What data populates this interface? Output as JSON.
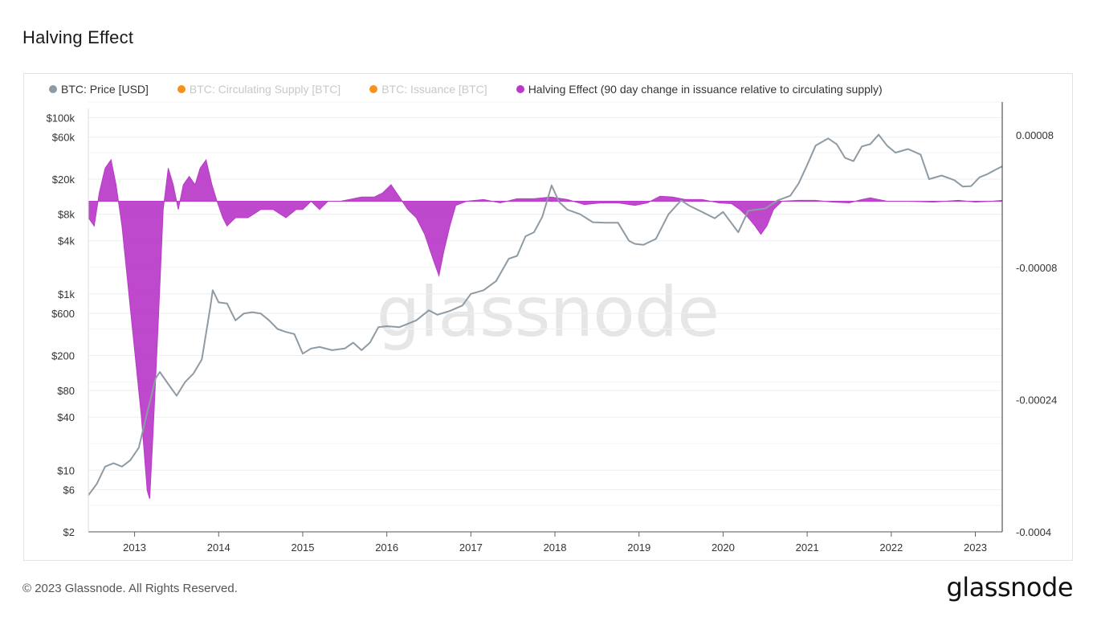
{
  "header": {
    "title": "Halving Effect"
  },
  "legend": [
    {
      "label": "BTC: Price [USD]",
      "color": "#8e9ba4",
      "active": true
    },
    {
      "label": "BTC: Circulating Supply [BTC]",
      "color": "#f7931a",
      "active": false
    },
    {
      "label": "BTC: Issuance [BTC]",
      "color": "#f7931a",
      "active": false
    },
    {
      "label": "Halving Effect (90 day change in issuance relative to circulating supply)",
      "color": "#b93ac8",
      "active": true
    }
  ],
  "watermark": "glassnode",
  "footer": {
    "copyright": "© 2023 Glassnode. All Rights Reserved.",
    "logo": "glassnode"
  },
  "chart_data": {
    "type": "line",
    "x_ticks": [
      "2013",
      "2014",
      "2015",
      "2016",
      "2017",
      "2018",
      "2019",
      "2020",
      "2021",
      "2022",
      "2023"
    ],
    "x_range": [
      2012.45,
      2023.32
    ],
    "y_left": {
      "scale": "log",
      "range": [
        2,
        150000
      ],
      "ticks": [
        {
          "v": 100000,
          "label": "$100k"
        },
        {
          "v": 60000,
          "label": "$60k"
        },
        {
          "v": 20000,
          "label": "$20k"
        },
        {
          "v": 8000,
          "label": "$8k"
        },
        {
          "v": 4000,
          "label": "$4k"
        },
        {
          "v": 1000,
          "label": "$1k"
        },
        {
          "v": 600,
          "label": "$600"
        },
        {
          "v": 200,
          "label": "$200"
        },
        {
          "v": 80,
          "label": "$80"
        },
        {
          "v": 40,
          "label": "$40"
        },
        {
          "v": 10,
          "label": "$10"
        },
        {
          "v": 6,
          "label": "$6"
        },
        {
          "v": 2,
          "label": "$2"
        }
      ]
    },
    "y_right": {
      "scale": "linear",
      "range": [
        -0.0004,
        0.00012
      ],
      "ticks": [
        {
          "v": 8e-05,
          "label": "0.00008"
        },
        {
          "v": -8e-05,
          "label": "-0.00008"
        },
        {
          "v": -0.00024,
          "label": "-0.00024"
        },
        {
          "v": -0.0004,
          "label": "-0.0004"
        }
      ]
    },
    "series": [
      {
        "name": "BTC: Price [USD]",
        "axis": "left",
        "color": "#8e9ba4",
        "points": [
          [
            2012.45,
            5.2
          ],
          [
            2012.55,
            7
          ],
          [
            2012.65,
            11
          ],
          [
            2012.75,
            12
          ],
          [
            2012.85,
            11
          ],
          [
            2012.95,
            13
          ],
          [
            2013.05,
            18
          ],
          [
            2013.15,
            45
          ],
          [
            2013.25,
            110
          ],
          [
            2013.3,
            130
          ],
          [
            2013.4,
            95
          ],
          [
            2013.5,
            70
          ],
          [
            2013.6,
            100
          ],
          [
            2013.7,
            125
          ],
          [
            2013.8,
            180
          ],
          [
            2013.9,
            700
          ],
          [
            2013.93,
            1100
          ],
          [
            2014.0,
            800
          ],
          [
            2014.1,
            780
          ],
          [
            2014.2,
            500
          ],
          [
            2014.3,
            600
          ],
          [
            2014.4,
            620
          ],
          [
            2014.5,
            600
          ],
          [
            2014.6,
            500
          ],
          [
            2014.7,
            400
          ],
          [
            2014.8,
            370
          ],
          [
            2014.9,
            350
          ],
          [
            2015.0,
            210
          ],
          [
            2015.1,
            240
          ],
          [
            2015.2,
            250
          ],
          [
            2015.35,
            230
          ],
          [
            2015.5,
            240
          ],
          [
            2015.6,
            280
          ],
          [
            2015.7,
            230
          ],
          [
            2015.8,
            280
          ],
          [
            2015.9,
            420
          ],
          [
            2016.0,
            430
          ],
          [
            2016.15,
            420
          ],
          [
            2016.35,
            500
          ],
          [
            2016.5,
            650
          ],
          [
            2016.6,
            580
          ],
          [
            2016.75,
            640
          ],
          [
            2016.9,
            740
          ],
          [
            2017.0,
            1000
          ],
          [
            2017.15,
            1100
          ],
          [
            2017.3,
            1400
          ],
          [
            2017.45,
            2500
          ],
          [
            2017.55,
            2700
          ],
          [
            2017.65,
            4500
          ],
          [
            2017.75,
            5000
          ],
          [
            2017.85,
            7500
          ],
          [
            2017.96,
            17000
          ],
          [
            2018.05,
            11000
          ],
          [
            2018.15,
            9000
          ],
          [
            2018.3,
            8000
          ],
          [
            2018.45,
            6500
          ],
          [
            2018.6,
            6400
          ],
          [
            2018.75,
            6400
          ],
          [
            2018.88,
            4000
          ],
          [
            2018.95,
            3700
          ],
          [
            2019.05,
            3600
          ],
          [
            2019.2,
            4200
          ],
          [
            2019.35,
            8000
          ],
          [
            2019.5,
            11500
          ],
          [
            2019.6,
            10000
          ],
          [
            2019.75,
            8500
          ],
          [
            2019.9,
            7200
          ],
          [
            2020.0,
            8500
          ],
          [
            2020.18,
            5000
          ],
          [
            2020.3,
            8800
          ],
          [
            2020.5,
            9300
          ],
          [
            2020.65,
            11500
          ],
          [
            2020.8,
            13000
          ],
          [
            2020.9,
            18000
          ],
          [
            2021.0,
            29000
          ],
          [
            2021.1,
            48000
          ],
          [
            2021.25,
            58000
          ],
          [
            2021.35,
            50000
          ],
          [
            2021.45,
            35000
          ],
          [
            2021.55,
            32000
          ],
          [
            2021.65,
            47000
          ],
          [
            2021.75,
            50000
          ],
          [
            2021.85,
            64000
          ],
          [
            2021.95,
            48000
          ],
          [
            2022.05,
            40000
          ],
          [
            2022.2,
            44000
          ],
          [
            2022.35,
            38000
          ],
          [
            2022.45,
            20000
          ],
          [
            2022.6,
            22000
          ],
          [
            2022.75,
            19500
          ],
          [
            2022.85,
            16500
          ],
          [
            2022.95,
            16700
          ],
          [
            2023.05,
            21000
          ],
          [
            2023.15,
            23000
          ],
          [
            2023.22,
            25000
          ],
          [
            2023.32,
            28000
          ]
        ]
      },
      {
        "name": "Halving Effect (90 day change in issuance relative to circulating supply)",
        "axis": "right",
        "color": "#b93ac8",
        "points": [
          [
            2012.45,
            -2e-05
          ],
          [
            2012.52,
            -3e-05
          ],
          [
            2012.58,
            1e-05
          ],
          [
            2012.65,
            4e-05
          ],
          [
            2012.72,
            5e-05
          ],
          [
            2012.78,
            2e-05
          ],
          [
            2012.85,
            -3e-05
          ],
          [
            2012.92,
            -0.0001
          ],
          [
            2013.0,
            -0.00018
          ],
          [
            2013.08,
            -0.00026
          ],
          [
            2013.15,
            -0.00035
          ],
          [
            2013.18,
            -0.00036
          ],
          [
            2013.22,
            -0.00028
          ],
          [
            2013.28,
            -0.00015
          ],
          [
            2013.34,
            -1e-05
          ],
          [
            2013.4,
            4e-05
          ],
          [
            2013.46,
            2e-05
          ],
          [
            2013.52,
            -1e-05
          ],
          [
            2013.58,
            2e-05
          ],
          [
            2013.65,
            3e-05
          ],
          [
            2013.72,
            2e-05
          ],
          [
            2013.78,
            4e-05
          ],
          [
            2013.85,
            5e-05
          ],
          [
            2013.92,
            2e-05
          ],
          [
            2013.98,
            0.0
          ],
          [
            2014.05,
            -2e-05
          ],
          [
            2014.1,
            -3e-05
          ],
          [
            2014.2,
            -2e-05
          ],
          [
            2014.35,
            -2e-05
          ],
          [
            2014.5,
            -1e-05
          ],
          [
            2014.65,
            -1e-05
          ],
          [
            2014.8,
            -2e-05
          ],
          [
            2014.92,
            -1e-05
          ],
          [
            2015.0,
            -1e-05
          ],
          [
            2015.1,
            0.0
          ],
          [
            2015.2,
            -1e-05
          ],
          [
            2015.3,
            0.0
          ],
          [
            2015.45,
            0.0
          ],
          [
            2015.6,
            3e-06
          ],
          [
            2015.7,
            5e-06
          ],
          [
            2015.85,
            5e-06
          ],
          [
            2015.95,
            1e-05
          ],
          [
            2016.05,
            2e-05
          ],
          [
            2016.15,
            5e-06
          ],
          [
            2016.25,
            -1e-05
          ],
          [
            2016.35,
            -2e-05
          ],
          [
            2016.45,
            -4e-05
          ],
          [
            2016.55,
            -7e-05
          ],
          [
            2016.62,
            -9e-05
          ],
          [
            2016.68,
            -6e-05
          ],
          [
            2016.75,
            -3e-05
          ],
          [
            2016.82,
            -5e-06
          ],
          [
            2016.95,
            0.0
          ],
          [
            2017.15,
            2e-06
          ],
          [
            2017.35,
            -2e-06
          ],
          [
            2017.55,
            3e-06
          ],
          [
            2017.75,
            3e-06
          ],
          [
            2017.95,
            5e-06
          ],
          [
            2018.15,
            2e-06
          ],
          [
            2018.35,
            -4e-06
          ],
          [
            2018.55,
            -2e-06
          ],
          [
            2018.75,
            -2e-06
          ],
          [
            2018.95,
            -5e-06
          ],
          [
            2019.1,
            -2e-06
          ],
          [
            2019.25,
            6e-06
          ],
          [
            2019.4,
            5e-06
          ],
          [
            2019.55,
            2e-06
          ],
          [
            2019.75,
            2e-06
          ],
          [
            2019.95,
            -2e-06
          ],
          [
            2020.1,
            -3e-06
          ],
          [
            2020.2,
            -1e-05
          ],
          [
            2020.3,
            -2e-05
          ],
          [
            2020.38,
            -3e-05
          ],
          [
            2020.45,
            -4e-05
          ],
          [
            2020.52,
            -3e-05
          ],
          [
            2020.6,
            -1e-05
          ],
          [
            2020.7,
            0.0
          ],
          [
            2020.9,
            1e-06
          ],
          [
            2021.1,
            1e-06
          ],
          [
            2021.3,
            -1e-06
          ],
          [
            2021.5,
            -2e-06
          ],
          [
            2021.65,
            2e-06
          ],
          [
            2021.75,
            4e-06
          ],
          [
            2021.85,
            2e-06
          ],
          [
            2021.95,
            0.0
          ],
          [
            2022.2,
            0.0
          ],
          [
            2022.5,
            -1e-06
          ],
          [
            2022.8,
            1e-06
          ],
          [
            2023.0,
            -1e-06
          ],
          [
            2023.2,
            0.0
          ],
          [
            2023.32,
            1e-06
          ]
        ]
      }
    ]
  }
}
